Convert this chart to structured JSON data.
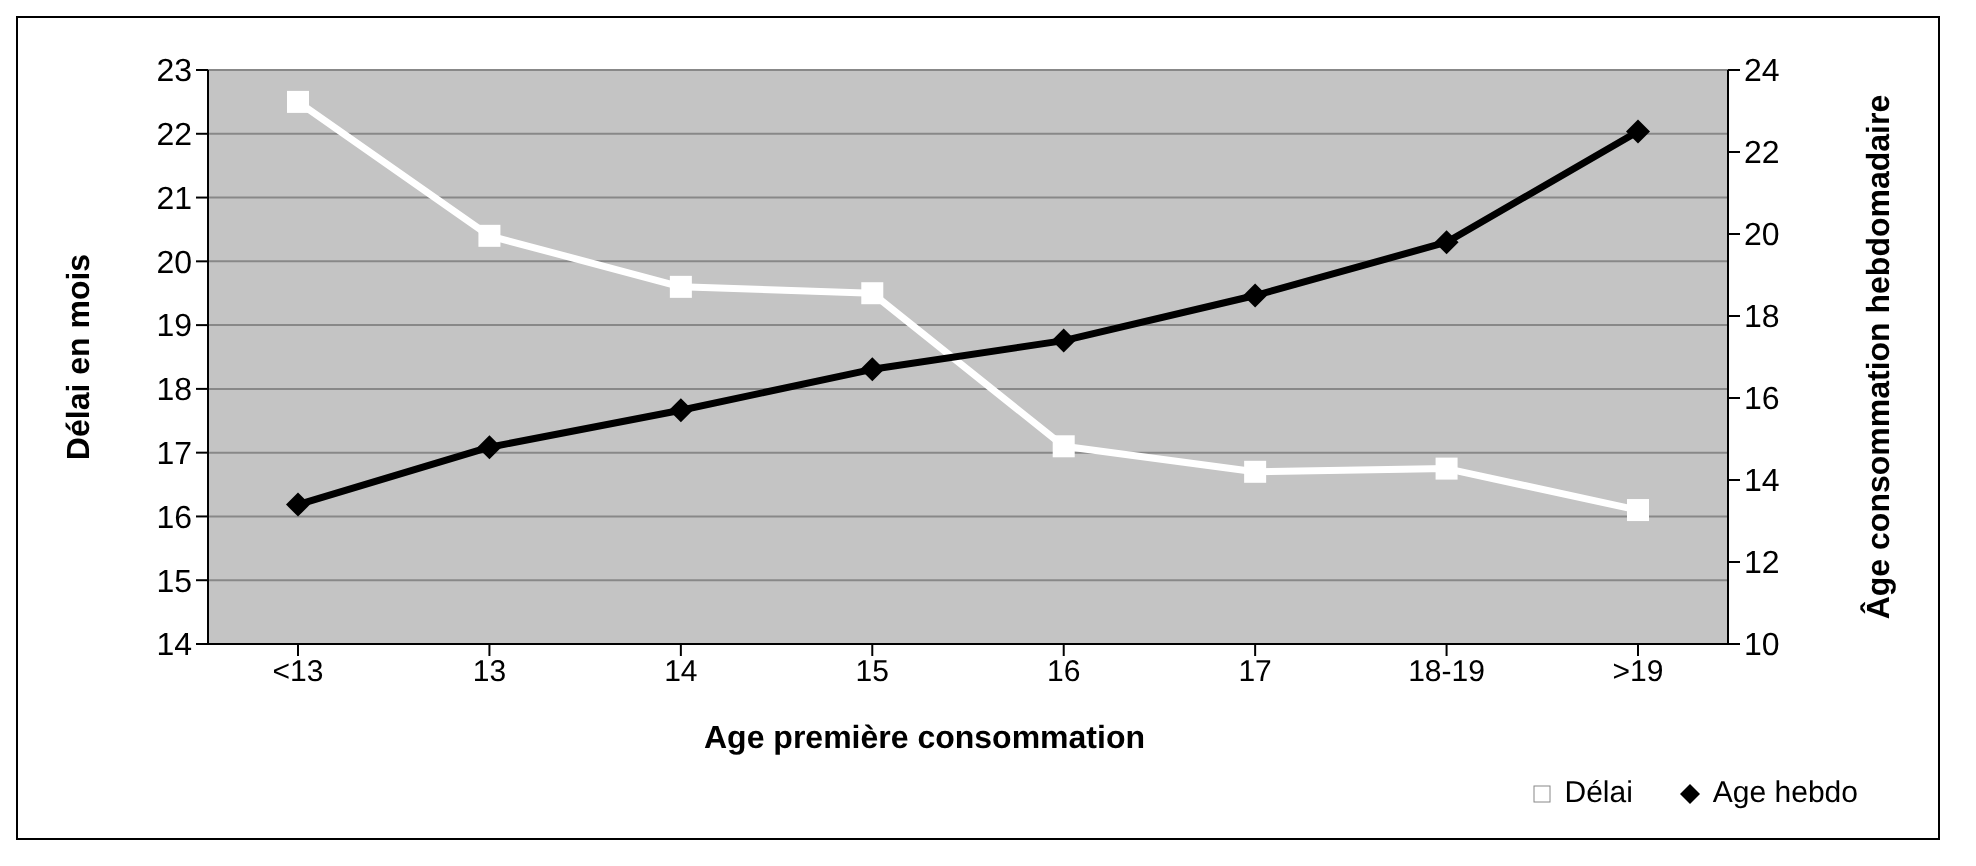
{
  "chart_data": {
    "type": "line",
    "xlabel": "Age première consommation",
    "ylabel": "Délai en mois",
    "y2label": "Âge consommation hebdomadaire",
    "categories": [
      "<13",
      "13",
      "14",
      "15",
      "16",
      "17",
      "18-19",
      ">19"
    ],
    "series": [
      {
        "name": "Délai",
        "color": "#ffffff",
        "marker": "square",
        "values": [
          22.5,
          20.4,
          19.6,
          19.5,
          17.1,
          16.7,
          16.75,
          16.1
        ]
      },
      {
        "name": "Age hebdo",
        "color": "#000000",
        "marker": "diamond",
        "axis": "y2",
        "values": [
          13.4,
          14.8,
          15.7,
          16.7,
          17.4,
          18.5,
          19.8,
          22.5
        ]
      }
    ],
    "ylim": [
      14,
      23
    ],
    "yticks": [
      14,
      15,
      16,
      17,
      18,
      19,
      20,
      21,
      22,
      23
    ],
    "y2lim": [
      10,
      24
    ],
    "y2ticks": [
      10,
      12,
      14,
      16,
      18,
      20,
      22,
      24
    ],
    "grid": "y",
    "legend": "bottom right"
  }
}
